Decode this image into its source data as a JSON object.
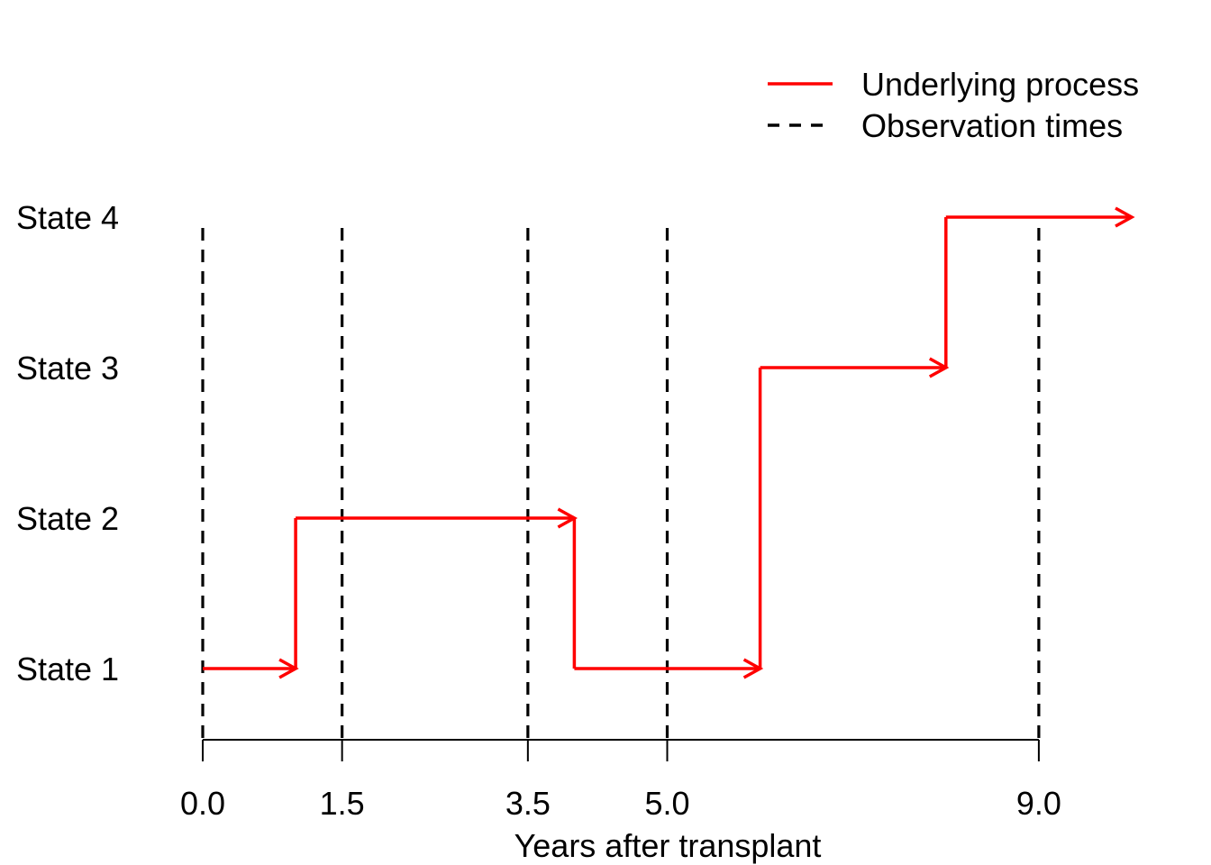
{
  "colors": {
    "process": "#ff0000",
    "observation": "#000000",
    "axis": "#000000",
    "background": "#ffffff"
  },
  "chart_data": {
    "type": "line",
    "title": "",
    "xlabel": "Years after transplant",
    "ylabel": "",
    "xlim": [
      0,
      10
    ],
    "ylim": [
      1,
      4
    ],
    "grid": false,
    "legend_position": "top-right",
    "legend": [
      {
        "label": "Underlying process",
        "style": "solid",
        "color": "#ff0000"
      },
      {
        "label": "Observation times",
        "style": "dashed",
        "color": "#000000"
      }
    ],
    "x_ticks": [
      0.0,
      1.5,
      3.5,
      5.0,
      9.0
    ],
    "x_tick_labels": [
      "0.0",
      "1.5",
      "3.5",
      "5.0",
      "9.0"
    ],
    "states": [
      {
        "value": 1,
        "label": "State 1"
      },
      {
        "value": 2,
        "label": "State 2"
      },
      {
        "value": 3,
        "label": "State 3"
      },
      {
        "value": 4,
        "label": "State 4"
      }
    ],
    "observation_times": [
      0.0,
      1.5,
      3.5,
      5.0,
      9.0
    ],
    "process_segments": [
      {
        "x_start": 0.0,
        "x_end": 1.0,
        "state": 1
      },
      {
        "x_start": 1.0,
        "x_end": 4.0,
        "state": 2
      },
      {
        "x_start": 4.0,
        "x_end": 6.0,
        "state": 1
      },
      {
        "x_start": 6.0,
        "x_end": 8.0,
        "state": 3
      },
      {
        "x_start": 8.0,
        "x_end": 10.0,
        "state": 4
      }
    ]
  }
}
